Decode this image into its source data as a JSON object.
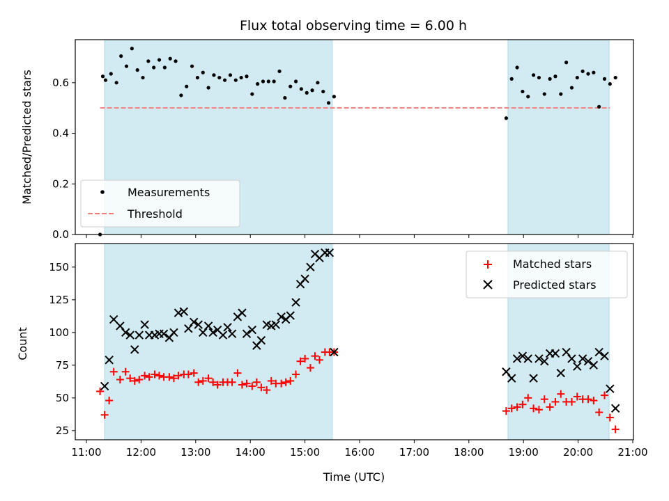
{
  "chart_data": [
    {
      "type": "scatter",
      "title": "Flux total observing time = 6.00 h",
      "xlabel": "",
      "ylabel": "Matched/Predicted stars",
      "xlim": [
        "11:00",
        "21:00"
      ],
      "ylim": [
        0,
        0.77
      ],
      "yticks": [
        0.0,
        0.2,
        0.4,
        0.6
      ],
      "ytick_labels": [
        "0.0",
        "0.2",
        "0.4",
        "0.6"
      ],
      "shaded_intervals": [
        [
          "11:20",
          "15:30"
        ],
        [
          "18:43",
          "20:34"
        ]
      ],
      "shade_color": "#add8e6",
      "legend": {
        "position": "lower-left",
        "entries": [
          "Measurements",
          "Threshold"
        ]
      },
      "threshold": {
        "name": "Threshold",
        "y": 0.5,
        "x_range": [
          "11:15",
          "20:35"
        ],
        "color": "#f08080",
        "style": "dashed"
      },
      "series": [
        {
          "name": "Measurements",
          "marker": "dot",
          "color": "#000000",
          "x": [
            "11:15",
            "11:18",
            "11:21",
            "11:27",
            "11:33",
            "11:38",
            "11:44",
            "11:50",
            "11:56",
            "12:02",
            "12:08",
            "12:14",
            "12:20",
            "12:26",
            "12:32",
            "12:38",
            "12:44",
            "12:50",
            "12:56",
            "13:02",
            "13:08",
            "13:14",
            "13:20",
            "13:26",
            "13:32",
            "13:38",
            "13:44",
            "13:50",
            "13:56",
            "14:02",
            "14:08",
            "14:14",
            "14:20",
            "14:26",
            "14:32",
            "14:38",
            "14:44",
            "14:50",
            "14:56",
            "15:02",
            "15:08",
            "15:14",
            "15:20",
            "15:26",
            "15:32",
            "18:41",
            "18:47",
            "18:53",
            "18:59",
            "19:05",
            "19:11",
            "19:17",
            "19:23",
            "19:29",
            "19:35",
            "19:41",
            "19:47",
            "19:53",
            "19:59",
            "20:05",
            "20:11",
            "20:17",
            "20:23",
            "20:29",
            "20:35",
            "20:41"
          ],
          "y": [
            0.0,
            0.625,
            0.61,
            0.635,
            0.6,
            0.705,
            0.665,
            0.735,
            0.65,
            0.62,
            0.685,
            0.66,
            0.69,
            0.66,
            0.695,
            0.685,
            0.55,
            0.585,
            0.665,
            0.62,
            0.64,
            0.58,
            0.63,
            0.62,
            0.61,
            0.63,
            0.61,
            0.62,
            0.625,
            0.555,
            0.595,
            0.605,
            0.605,
            0.605,
            0.645,
            0.54,
            0.585,
            0.605,
            0.575,
            0.56,
            0.57,
            0.6,
            0.565,
            0.52,
            0.545,
            0.46,
            0.615,
            0.66,
            0.565,
            0.545,
            0.63,
            0.62,
            0.555,
            0.615,
            0.625,
            0.555,
            0.68,
            0.58,
            0.62,
            0.645,
            0.635,
            0.64,
            0.505,
            0.615,
            0.595,
            0.62
          ]
        }
      ]
    },
    {
      "type": "scatter",
      "title": "",
      "xlabel": "Time (UTC)",
      "ylabel": "Count",
      "xlim": [
        "11:00",
        "21:00"
      ],
      "xticks": [
        "11:00",
        "12:00",
        "13:00",
        "14:00",
        "15:00",
        "16:00",
        "17:00",
        "18:00",
        "19:00",
        "20:00",
        "21:00"
      ],
      "ylim": [
        18,
        168
      ],
      "yticks": [
        25,
        50,
        75,
        100,
        125,
        150
      ],
      "ytick_labels": [
        "25",
        "50",
        "75",
        "100",
        "125",
        "150"
      ],
      "shaded_intervals": [
        [
          "11:20",
          "15:30"
        ],
        [
          "18:43",
          "20:34"
        ]
      ],
      "shade_color": "#add8e6",
      "legend": {
        "position": "upper-right",
        "entries": [
          "Matched stars",
          "Predicted stars"
        ]
      },
      "series": [
        {
          "name": "Matched stars",
          "marker": "plus",
          "color": "#ff0000",
          "x": [
            "11:15",
            "11:20",
            "11:25",
            "11:30",
            "11:37",
            "11:43",
            "11:48",
            "11:53",
            "11:58",
            "12:04",
            "12:09",
            "12:15",
            "12:20",
            "12:25",
            "12:31",
            "12:36",
            "12:41",
            "12:47",
            "12:52",
            "12:58",
            "13:03",
            "13:08",
            "13:14",
            "13:19",
            "13:24",
            "13:30",
            "13:35",
            "13:40",
            "13:46",
            "13:51",
            "13:56",
            "14:02",
            "14:07",
            "14:12",
            "14:18",
            "14:23",
            "14:28",
            "14:34",
            "14:39",
            "14:44",
            "14:50",
            "14:55",
            "15:00",
            "15:06",
            "15:11",
            "15:16",
            "15:22",
            "15:27",
            "15:32",
            "18:41",
            "18:47",
            "18:53",
            "18:59",
            "19:05",
            "19:11",
            "19:17",
            "19:23",
            "19:29",
            "19:35",
            "19:41",
            "19:47",
            "19:53",
            "19:59",
            "20:05",
            "20:11",
            "20:17",
            "20:23",
            "20:29",
            "20:35",
            "20:41"
          ],
          "y": [
            55,
            37,
            48,
            70,
            64,
            70,
            65,
            63,
            64,
            67,
            66,
            68,
            67,
            66,
            66,
            65,
            67,
            68,
            68,
            69,
            62,
            63,
            65,
            62,
            60,
            62,
            62,
            62,
            69,
            60,
            61,
            59,
            62,
            58,
            56,
            63,
            61,
            61,
            62,
            63,
            68,
            78,
            80,
            73,
            82,
            79,
            85,
            85,
            85,
            40,
            42,
            43,
            45,
            50,
            42,
            41,
            49,
            43,
            47,
            53,
            47,
            47,
            51,
            49,
            49,
            48,
            39,
            52,
            35,
            26
          ]
        },
        {
          "name": "Predicted stars",
          "marker": "x",
          "color": "#000000",
          "x": [
            "11:20",
            "11:25",
            "11:30",
            "11:37",
            "11:43",
            "11:48",
            "11:53",
            "11:58",
            "12:04",
            "12:09",
            "12:15",
            "12:20",
            "12:25",
            "12:31",
            "12:36",
            "12:41",
            "12:47",
            "12:52",
            "12:58",
            "13:03",
            "13:08",
            "13:14",
            "13:19",
            "13:24",
            "13:30",
            "13:35",
            "13:40",
            "13:46",
            "13:51",
            "13:56",
            "14:02",
            "14:07",
            "14:12",
            "14:18",
            "14:23",
            "14:28",
            "14:34",
            "14:39",
            "14:44",
            "14:50",
            "14:55",
            "15:00",
            "15:06",
            "15:11",
            "15:16",
            "15:22",
            "15:27",
            "15:32",
            "18:41",
            "18:47",
            "18:53",
            "18:59",
            "19:05",
            "19:11",
            "19:17",
            "19:23",
            "19:29",
            "19:35",
            "19:41",
            "19:47",
            "19:53",
            "19:59",
            "20:05",
            "20:11",
            "20:17",
            "20:23",
            "20:29",
            "20:35",
            "20:41"
          ],
          "y": [
            59,
            79,
            110,
            105,
            100,
            98,
            87,
            98,
            106,
            98,
            98,
            99,
            99,
            96,
            100,
            115,
            116,
            103,
            108,
            106,
            100,
            105,
            100,
            102,
            98,
            104,
            99,
            112,
            115,
            99,
            102,
            90,
            94,
            106,
            105,
            106,
            112,
            110,
            113,
            123,
            137,
            141,
            150,
            160,
            157,
            161,
            161,
            85,
            70,
            65,
            80,
            82,
            80,
            65,
            80,
            78,
            84,
            84,
            69,
            85,
            80,
            74,
            80,
            78,
            75,
            85,
            82,
            57,
            42
          ]
        }
      ]
    }
  ]
}
